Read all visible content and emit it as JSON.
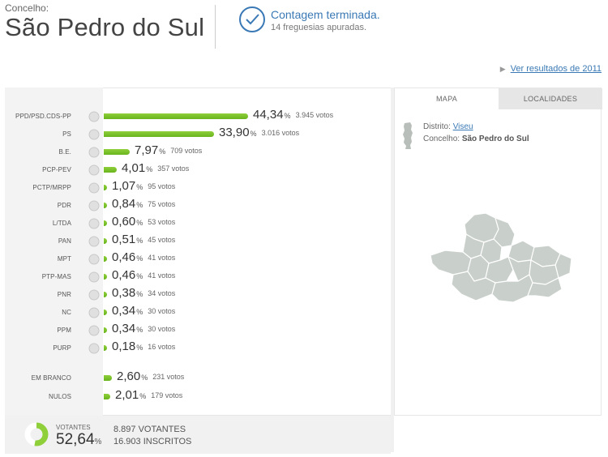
{
  "header": {
    "label": "Concelho:",
    "name": "São Pedro do Sul",
    "status_title": "Contagem terminada.",
    "status_sub": "14 freguesias apuradas.",
    "prev_link": "Ver resultados de 2011"
  },
  "results": [
    {
      "party": "PPD/PSD.CDS-PP",
      "pct": "44,34",
      "votes": "3.945 votos",
      "value": 44.34
    },
    {
      "party": "PS",
      "pct": "33,90",
      "votes": "3.016 votos",
      "value": 33.9
    },
    {
      "party": "B.E.",
      "pct": "7,97",
      "votes": "709 votos",
      "value": 7.97
    },
    {
      "party": "PCP-PEV",
      "pct": "4,01",
      "votes": "357 votos",
      "value": 4.01
    },
    {
      "party": "PCTP/MRPP",
      "pct": "1,07",
      "votes": "95 votos",
      "value": 1.07
    },
    {
      "party": "PDR",
      "pct": "0,84",
      "votes": "75 votos",
      "value": 0.84
    },
    {
      "party": "L/TDA",
      "pct": "0,60",
      "votes": "53 votos",
      "value": 0.6
    },
    {
      "party": "PAN",
      "pct": "0,51",
      "votes": "45 votos",
      "value": 0.51
    },
    {
      "party": "MPT",
      "pct": "0,46",
      "votes": "41 votos",
      "value": 0.46
    },
    {
      "party": "PTP-MAS",
      "pct": "0,46",
      "votes": "41 votos",
      "value": 0.46
    },
    {
      "party": "PNR",
      "pct": "0,38",
      "votes": "34 votos",
      "value": 0.38
    },
    {
      "party": "NC",
      "pct": "0,34",
      "votes": "30 votos",
      "value": 0.34
    },
    {
      "party": "PPM",
      "pct": "0,34",
      "votes": "30 votos",
      "value": 0.34
    },
    {
      "party": "PURP",
      "pct": "0,18",
      "votes": "16 votos",
      "value": 0.18
    }
  ],
  "special": [
    {
      "party": "EM BRANCO",
      "pct": "2,60",
      "votes": "231 votos",
      "value": 2.6
    },
    {
      "party": "NULOS",
      "pct": "2,01",
      "votes": "179 votos",
      "value": 2.01
    }
  ],
  "summary": {
    "label": "VOTANTES",
    "pct": "52,64",
    "pct_value": 52.64,
    "votantes": "8.897 VOTANTES",
    "inscritos": "16.903 INSCRITOS"
  },
  "panel": {
    "tab_map": "MAPA",
    "tab_loc": "LOCALIDADES",
    "distrito_label": "Distrito:",
    "distrito": "Viseu",
    "concelho_label": "Concelho:",
    "concelho": "São Pedro do Sul"
  },
  "colors": {
    "accent": "#3a79b5",
    "bar": "#7cc22c",
    "map_fill": "#c9cfca",
    "map_stroke": "#ffffff"
  },
  "percent_sign": "%",
  "logos": [
    "psd-cds-logo",
    "ps-logo",
    "be-logo",
    "pcp-pev-logo",
    "pctp-mrpp-logo",
    "pdr-logo",
    "livre-logo",
    "pan-logo",
    "mpt-logo",
    "ptp-mas-logo",
    "pnr-logo",
    "nc-logo",
    "ppm-logo",
    "purp-logo"
  ]
}
